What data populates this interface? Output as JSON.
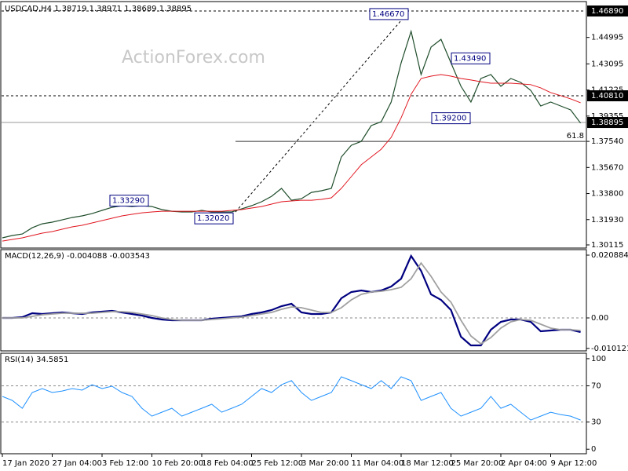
{
  "watermark": "ActionForex.com",
  "chart_data": [
    {
      "type": "line",
      "title": "USDCAD,H4  1.38719 1.38971 1.38689 1.38895",
      "ylim": [
        1.2989,
        1.4751
      ],
      "yticks": [
        1.30115,
        {
          "value": 1.3193,
          "label": "1.31930"
        },
        {
          "value": 1.338,
          "label": "1.33800"
        },
        {
          "value": 1.3567,
          "label": "1.35670"
        },
        {
          "value": 1.3754,
          "label": "1.37540"
        },
        1.39355,
        1.41225,
        1.43095,
        1.44995
      ],
      "series": [
        {
          "color": "#1f4d2b",
          "values": [
            1.3062,
            1.3079,
            1.309,
            1.3135,
            1.3163,
            1.3175,
            1.3191,
            1.3208,
            1.322,
            1.3236,
            1.3259,
            1.3281,
            1.3293,
            1.3287,
            1.3293,
            1.3287,
            1.3265,
            1.3253,
            1.3248,
            1.3248,
            1.3259,
            1.3248,
            1.3248,
            1.3248,
            1.327,
            1.3293,
            1.3321,
            1.336,
            1.3417,
            1.3332,
            1.3343,
            1.3388,
            1.34,
            1.3417,
            1.3642,
            1.3726,
            1.3754,
            1.3867,
            1.3895,
            1.4036,
            1.4317,
            1.4543,
            1.4233,
            1.443,
            1.4486,
            1.4317,
            1.4149,
            1.4036,
            1.4205,
            1.4233,
            1.4149,
            1.4205,
            1.4177,
            1.412,
            1.4008,
            1.4036,
            1.4008,
            1.398,
            1.3885
          ]
        },
        {
          "color": "#e0141e",
          "values": [
            1.3039,
            1.3051,
            1.3062,
            1.3079,
            1.3096,
            1.3107,
            1.3124,
            1.3141,
            1.3152,
            1.3169,
            1.3186,
            1.3203,
            1.322,
            1.3231,
            1.3242,
            1.3248,
            1.3253,
            1.3253,
            1.3253,
            1.3253,
            1.3253,
            1.3253,
            1.3253,
            1.3259,
            1.3265,
            1.3276,
            1.3287,
            1.3304,
            1.3321,
            1.3327,
            1.3332,
            1.3332,
            1.3338,
            1.3349,
            1.3417,
            1.3501,
            1.3586,
            1.3642,
            1.3698,
            1.3783,
            1.3923,
            1.4092,
            1.4205,
            1.4222,
            1.4233,
            1.4222,
            1.4205,
            1.4194,
            1.4182,
            1.4171,
            1.4171,
            1.4171,
            1.4166,
            1.4161,
            1.4138,
            1.4104,
            1.4082,
            1.4059,
            1.4031
          ]
        }
      ],
      "levels": [
        {
          "value": 1.4689,
          "label": "1.46890"
        },
        {
          "value": 1.4081,
          "label": "1.40810"
        },
        {
          "value": 1.38895,
          "label": "1.38895"
        }
      ],
      "fibonacci": {
        "text": "61.8",
        "price": 1.3754
      },
      "annotations": [
        {
          "value": 1.4667,
          "label": "1.46670"
        },
        {
          "value": 1.4349,
          "label": "1.43490"
        },
        {
          "value": 1.392,
          "label": "1.39200"
        },
        {
          "value": 1.3329,
          "label": "1.33290"
        },
        {
          "value": 1.3202,
          "label": "1.32020"
        }
      ]
    },
    {
      "type": "line",
      "title": "MACD(12,26,9) -0.004088 -0.003543",
      "ylim": [
        -0.01096,
        0.02271
      ],
      "yticks": [
        0.020884,
        {
          "value": 0,
          "label": "0.00"
        },
        -0.010121
      ],
      "series": [
        {
          "color": "#000080",
          "values": [
            0,
            0,
            0.00026,
            0.00157,
            0.00131,
            0.00157,
            0.00183,
            0.00157,
            0.00131,
            0.00183,
            0.00209,
            0.00235,
            0.00183,
            0.00131,
            0.00078,
            0,
            -0.00052,
            -0.00078,
            -0.00078,
            -0.00078,
            -0.00078,
            -0.00026,
            0,
            0.00026,
            0.00052,
            0.00131,
            0.00183,
            0.00261,
            0.00392,
            0.0047,
            0.00183,
            0.00131,
            0.00131,
            0.00183,
            0.00653,
            0.00861,
            0.00914,
            0.00861,
            0.00914,
            0.01044,
            0.01305,
            0.02062,
            0.01566,
            0.00783,
            0.006,
            0.00261,
            -0.00626,
            -0.00914,
            -0.00914,
            -0.00392,
            -0.00131,
            -0.00052,
            -0.00052,
            -0.00131,
            -0.00444,
            -0.00418,
            -0.00392,
            -0.00392,
            -0.0047
          ]
        },
        {
          "color": "#a0a0a0",
          "values": [
            0,
            0,
            0,
            0.00052,
            0.00104,
            0.00131,
            0.00157,
            0.00157,
            0.00157,
            0.00157,
            0.00183,
            0.00209,
            0.00209,
            0.00183,
            0.00131,
            0.00078,
            0,
            -0.00052,
            -0.00078,
            -0.00078,
            -0.00078,
            -0.00052,
            -0.00026,
            0,
            0.00026,
            0.00078,
            0.00131,
            0.00183,
            0.00287,
            0.00365,
            0.00339,
            0.00261,
            0.00183,
            0.00183,
            0.00339,
            0.006,
            0.00783,
            0.00861,
            0.00887,
            0.0094,
            0.01018,
            0.01305,
            0.01827,
            0.01383,
            0.00861,
            0.00522,
            -0.00078,
            -0.006,
            -0.00861,
            -0.00653,
            -0.00339,
            -0.00131,
            -0.00052,
            -0.00078,
            -0.00209,
            -0.00339,
            -0.00392,
            -0.00392,
            -0.00418
          ]
        }
      ]
    },
    {
      "type": "line",
      "title": "RSI(14) 34.5851",
      "ylim": [
        -5,
        106
      ],
      "yticks": [
        0,
        30,
        70,
        100
      ],
      "dotted_levels": [
        30,
        70
      ],
      "series": [
        {
          "color": "#1e90ff",
          "values": [
            58.3,
            53.9,
            45.2,
            62.6,
            67,
            62.6,
            64.3,
            67,
            65.2,
            71.3,
            67,
            69.6,
            62.6,
            58.3,
            45.2,
            36.5,
            40.9,
            45.2,
            36.5,
            40.9,
            45.2,
            49.6,
            40.9,
            45.2,
            49.6,
            58.3,
            67,
            62.6,
            71.3,
            75.7,
            62.6,
            53.9,
            58.3,
            62.6,
            80,
            75.7,
            71.3,
            67,
            75.7,
            67,
            80,
            75.7,
            53.9,
            58.3,
            62.6,
            45.2,
            36.5,
            40.9,
            45.2,
            58.3,
            45.2,
            49.6,
            40.9,
            32.2,
            36.5,
            40.9,
            38.3,
            36.5,
            32.2
          ]
        }
      ],
      "categories": [
        "17 Jan 2020",
        null,
        null,
        null,
        null,
        "27 Jan 04:00",
        null,
        null,
        null,
        null,
        "3 Feb 12:00",
        null,
        null,
        null,
        null,
        "10 Feb 20:00",
        null,
        null,
        null,
        null,
        "18 Feb 04:00",
        null,
        null,
        null,
        null,
        "25 Feb 12:00",
        null,
        null,
        null,
        null,
        "3 Mar 20:00",
        null,
        null,
        null,
        null,
        "11 Mar 04:00",
        null,
        null,
        null,
        null,
        "18 Mar 12:00",
        null,
        null,
        null,
        null,
        "25 Mar 20:00",
        null,
        null,
        null,
        null,
        "2 Apr 04:00",
        null,
        null,
        null,
        null,
        "9 Apr 12:00",
        null,
        null,
        null
      ]
    }
  ]
}
